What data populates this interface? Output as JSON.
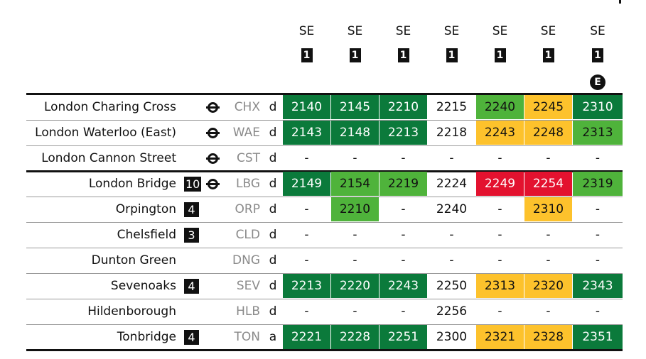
{
  "header": {
    "columns": [
      {
        "operator": "SE",
        "badge": "1"
      },
      {
        "operator": "SE",
        "badge": "1"
      },
      {
        "operator": "SE",
        "badge": "1"
      },
      {
        "operator": "SE",
        "badge": "1"
      },
      {
        "operator": "SE",
        "badge": "1"
      },
      {
        "operator": "SE",
        "badge": "1"
      },
      {
        "operator": "SE",
        "badge": "1",
        "note": "E"
      }
    ]
  },
  "table": {
    "rows": [
      {
        "station": "London Charing Cross",
        "tube": true,
        "code": "CHX",
        "type": "d",
        "times": [
          "2140",
          "2145",
          "2210",
          "2215",
          "2240",
          "2245",
          "2310"
        ],
        "status": [
          "dark",
          "dark",
          "dark",
          null,
          "light",
          "amber",
          "dark"
        ]
      },
      {
        "station": "London Waterloo (East)",
        "tube": true,
        "code": "WAE",
        "type": "d",
        "times": [
          "2143",
          "2148",
          "2213",
          "2218",
          "2243",
          "2248",
          "2313"
        ],
        "status": [
          "dark",
          "dark",
          "dark",
          null,
          "amber",
          "amber",
          "light"
        ]
      },
      {
        "station": "London Cannon Street",
        "tube": true,
        "code": "CST",
        "type": "d",
        "times": [
          "-",
          "-",
          "-",
          "-",
          "-",
          "-",
          "-"
        ],
        "status": [
          null,
          null,
          null,
          null,
          null,
          null,
          null
        ]
      },
      {
        "station": "London Bridge",
        "platform": "10",
        "tube": true,
        "code": "LBG",
        "type": "d",
        "times": [
          "2149",
          "2154",
          "2219",
          "2224",
          "2249",
          "2254",
          "2319"
        ],
        "status": [
          "dark",
          "light",
          "light",
          null,
          "red",
          "red",
          "light"
        ]
      },
      {
        "station": "Orpington",
        "platform": "4",
        "code": "ORP",
        "type": "d",
        "times": [
          "-",
          "2210",
          "-",
          "2240",
          "-",
          "2310",
          "-"
        ],
        "status": [
          null,
          "light",
          null,
          null,
          null,
          "amber",
          null
        ]
      },
      {
        "station": "Chelsfield",
        "platform": "3",
        "code": "CLD",
        "type": "d",
        "times": [
          "-",
          "-",
          "-",
          "-",
          "-",
          "-",
          "-"
        ],
        "status": [
          null,
          null,
          null,
          null,
          null,
          null,
          null
        ]
      },
      {
        "station": "Dunton Green",
        "code": "DNG",
        "type": "d",
        "times": [
          "-",
          "-",
          "-",
          "-",
          "-",
          "-",
          "-"
        ],
        "status": [
          null,
          null,
          null,
          null,
          null,
          null,
          null
        ]
      },
      {
        "station": "Sevenoaks",
        "platform": "4",
        "code": "SEV",
        "type": "d",
        "times": [
          "2213",
          "2220",
          "2243",
          "2250",
          "2313",
          "2320",
          "2343"
        ],
        "status": [
          "dark",
          "dark",
          "dark",
          null,
          "amber",
          "amber",
          "dark"
        ]
      },
      {
        "station": "Hildenborough",
        "code": "HLB",
        "type": "d",
        "times": [
          "-",
          "-",
          "-",
          "2256",
          "-",
          "-",
          "-"
        ],
        "status": [
          null,
          null,
          null,
          null,
          null,
          null,
          null
        ]
      },
      {
        "station": "Tonbridge",
        "platform": "4",
        "code": "TON",
        "type": "a",
        "times": [
          "2221",
          "2228",
          "2251",
          "2300",
          "2321",
          "2328",
          "2351"
        ],
        "status": [
          "dark",
          "dark",
          "dark",
          null,
          "amber",
          "amber",
          "dark"
        ]
      }
    ]
  }
}
